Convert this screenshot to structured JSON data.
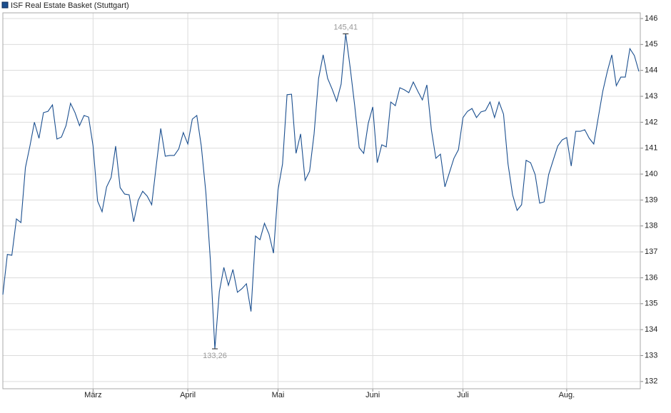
{
  "chart_data": {
    "type": "line",
    "series": [
      {
        "name": "ISF Real Estate Basket (Stuttgart)",
        "color": "#1b4f8f",
        "values": [
          135.35,
          136.9,
          136.87,
          138.27,
          138.13,
          140.25,
          141.08,
          142.0,
          141.38,
          142.37,
          142.42,
          142.67,
          141.35,
          141.43,
          141.87,
          142.73,
          142.37,
          141.87,
          142.26,
          142.2,
          141.08,
          138.96,
          138.55,
          139.5,
          139.87,
          141.08,
          139.48,
          139.23,
          139.2,
          138.16,
          138.99,
          139.34,
          139.15,
          138.82,
          140.33,
          141.76,
          140.69,
          140.72,
          140.72,
          140.97,
          141.6,
          141.16,
          142.12,
          142.26,
          141.08,
          139.29,
          136.68,
          133.26,
          135.47,
          136.4,
          135.71,
          136.32,
          135.44,
          135.58,
          135.77,
          134.7,
          137.61,
          137.47,
          138.1,
          137.69,
          136.95,
          139.4,
          140.39,
          143.06,
          143.08,
          140.8,
          141.55,
          139.76,
          140.11,
          141.55,
          143.69,
          144.6,
          143.69,
          143.28,
          142.81,
          143.47,
          145.41,
          144.1,
          142.64,
          141.02,
          140.8,
          141.96,
          142.59,
          140.44,
          141.13,
          141.05,
          142.78,
          142.64,
          143.33,
          143.25,
          143.14,
          143.55,
          143.19,
          142.86,
          143.44,
          141.71,
          140.61,
          140.77,
          139.51,
          140.06,
          140.61,
          140.94,
          142.18,
          142.42,
          142.53,
          142.18,
          142.4,
          142.45,
          142.78,
          142.18,
          142.78,
          142.31,
          140.39,
          139.2,
          138.6,
          138.82,
          140.53,
          140.44,
          139.98,
          138.88,
          138.93,
          139.98,
          140.53,
          141.08,
          141.32,
          141.41,
          140.31,
          141.65,
          141.65,
          141.71,
          141.38,
          141.16,
          142.18,
          143.19,
          143.96,
          144.6,
          143.41,
          143.74,
          143.74,
          144.84,
          144.57,
          143.96
        ],
        "value_labels": [
          null,
          null,
          null,
          null,
          null,
          null,
          null,
          null,
          null,
          null,
          null,
          null,
          null,
          null,
          null,
          null,
          null,
          null,
          null,
          null,
          null,
          null,
          null,
          null,
          null,
          null,
          null,
          null,
          null,
          null,
          null,
          null,
          null,
          null,
          null,
          null,
          null,
          null,
          null,
          null,
          null,
          null,
          null,
          null,
          null,
          null,
          null,
          "133,26",
          null,
          null,
          null,
          null,
          null,
          null,
          null,
          null,
          null,
          null,
          null,
          null,
          null,
          null,
          null,
          null,
          null,
          null,
          null,
          null,
          null,
          null,
          null,
          null,
          null,
          null,
          null,
          null,
          "145,41",
          null,
          null,
          null,
          null,
          null,
          null,
          null,
          null,
          null,
          null,
          null,
          null,
          null,
          null,
          null,
          null,
          null,
          null,
          null,
          null,
          null,
          null,
          null,
          null,
          null,
          null,
          null,
          null,
          null,
          null,
          null,
          null,
          null,
          null,
          null,
          null,
          null,
          null,
          null,
          null,
          null,
          null,
          null,
          null,
          null,
          null,
          null,
          null,
          null,
          null,
          null,
          null,
          null,
          null,
          null,
          null,
          null,
          null,
          null,
          null,
          null,
          null,
          null,
          null,
          null
        ]
      }
    ],
    "categories": [
      null,
      null,
      null,
      null,
      null,
      null,
      null,
      null,
      null,
      null,
      null,
      null,
      null,
      null,
      null,
      null,
      null,
      null,
      null,
      null,
      "März",
      null,
      null,
      null,
      null,
      null,
      null,
      null,
      null,
      null,
      null,
      null,
      null,
      null,
      null,
      null,
      null,
      null,
      null,
      null,
      null,
      "April",
      null,
      null,
      null,
      null,
      null,
      null,
      null,
      null,
      null,
      null,
      null,
      null,
      null,
      null,
      null,
      null,
      null,
      null,
      null,
      "Mai",
      null,
      null,
      null,
      null,
      null,
      null,
      null,
      null,
      null,
      null,
      null,
      null,
      null,
      null,
      null,
      null,
      null,
      null,
      null,
      null,
      "Juni",
      null,
      null,
      null,
      null,
      null,
      null,
      null,
      null,
      null,
      null,
      null,
      null,
      null,
      null,
      null,
      null,
      null,
      null,
      null,
      "Juli",
      null,
      null,
      null,
      null,
      null,
      null,
      null,
      null,
      null,
      null,
      null,
      null,
      null,
      null,
      null,
      null,
      null,
      null,
      null,
      null,
      null,
      null,
      "Aug.",
      null,
      null,
      null,
      null,
      null,
      null,
      null,
      null,
      null,
      null,
      null,
      null,
      null,
      null,
      null,
      null
    ],
    "ylim": [
      131.72,
      146.22
    ],
    "yticks": [
      132,
      133,
      134,
      135,
      136,
      137,
      138,
      139,
      140,
      141,
      142,
      143,
      144,
      145,
      146
    ],
    "grid": true,
    "legend": "top-left"
  }
}
